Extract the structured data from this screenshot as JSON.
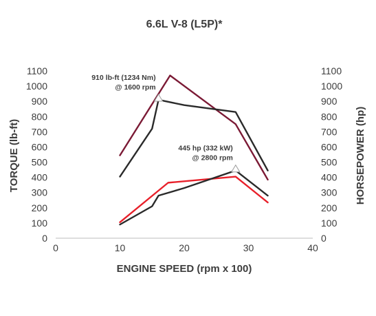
{
  "chart_data": {
    "type": "line",
    "title": "6.6L V-8 (L5P)*",
    "xlabel": "ENGINE SPEED (rpm x 100)",
    "ylabel_left": "TORQUE (lb-ft)",
    "ylabel_right": "HORSEPOWER (hp)",
    "xlim": [
      0,
      40
    ],
    "ylim": [
      0,
      1100
    ],
    "x_ticks": [
      0,
      10,
      20,
      30,
      40
    ],
    "y_ticks": [
      0,
      100,
      200,
      300,
      400,
      500,
      600,
      700,
      800,
      900,
      1000,
      1100
    ],
    "grid": false,
    "series": [
      {
        "color": "#7b1a35",
        "x": [
          10,
          17.8,
          28,
          33
        ],
        "values": [
          545,
          1070,
          750,
          385
        ]
      },
      {
        "color": "#2a2a2a",
        "x": [
          10,
          15,
          16,
          20,
          28,
          33
        ],
        "values": [
          405,
          720,
          910,
          875,
          830,
          445
        ]
      },
      {
        "color": "#e8202a",
        "x": [
          10,
          17.5,
          28,
          33
        ],
        "values": [
          105,
          365,
          405,
          235
        ]
      },
      {
        "color": "#2a2a2a",
        "x": [
          10,
          15,
          16,
          20,
          28,
          33
        ],
        "values": [
          90,
          210,
          280,
          330,
          445,
          280
        ]
      }
    ],
    "annotations": [
      {
        "lines": [
          "910 lb-ft (1234 Nm)",
          "@ 1600 rpm"
        ],
        "x": 16,
        "y": 910
      },
      {
        "lines": [
          "445 hp (332 kW)",
          "@ 2800 rpm"
        ],
        "x": 28,
        "y": 445
      }
    ]
  }
}
